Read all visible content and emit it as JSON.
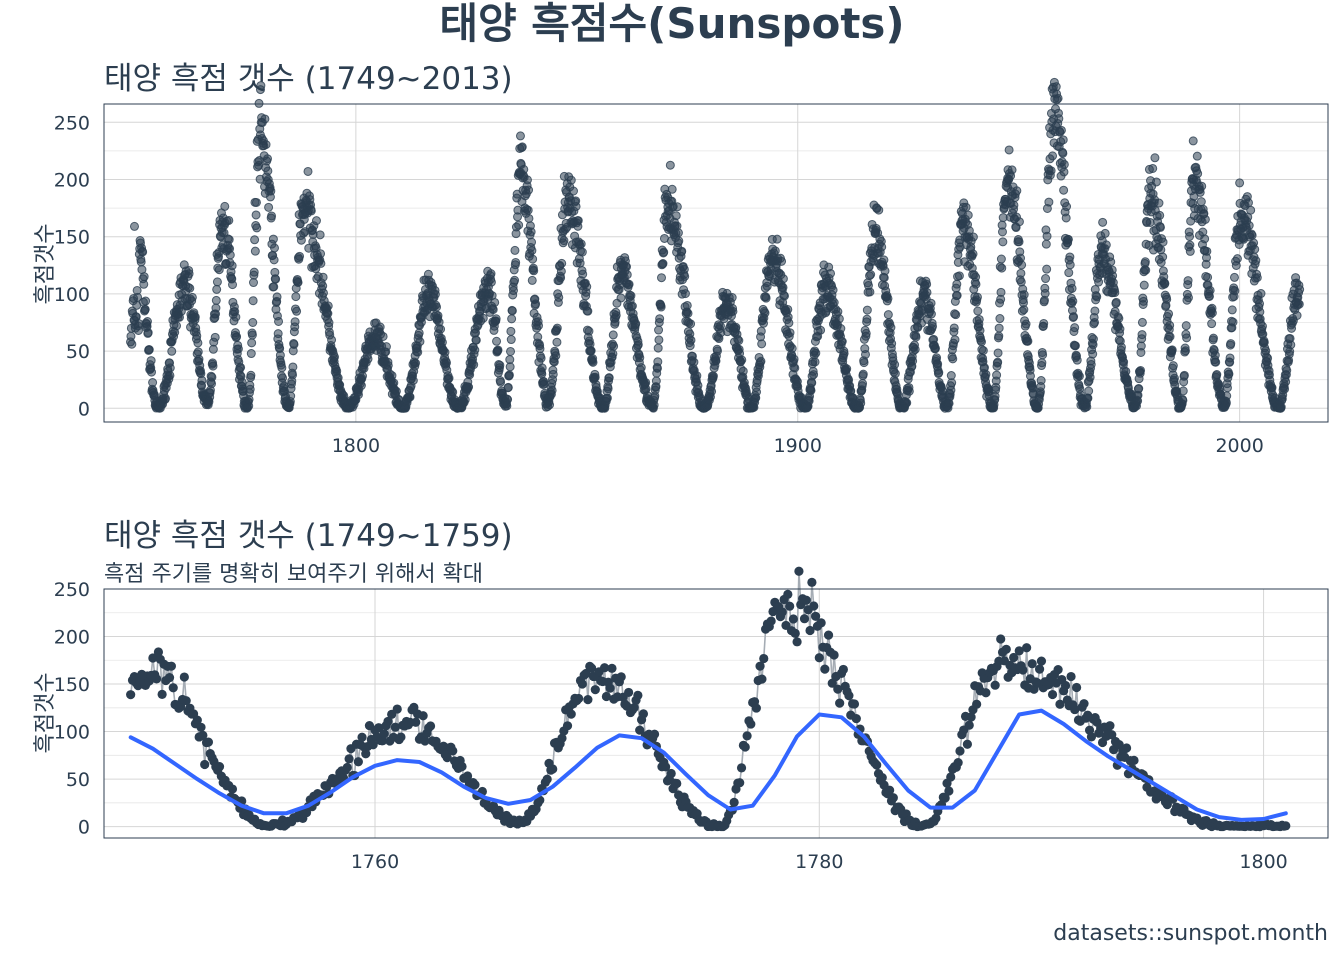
{
  "title": "태양 흑점수(Sunspots)",
  "caption": "datasets::sunspot.month",
  "colors": {
    "points": "#2c3e50",
    "smooth": "#3366ff",
    "segments": "#a5acb4"
  },
  "chart_data": [
    {
      "type": "scatter",
      "title": "태양 흑점 갯수 (1749~2013)",
      "ylabel": "흑점갯수",
      "xlim": [
        1743,
        2020
      ],
      "ylim": [
        -12,
        266
      ],
      "x_ticks": [
        1800,
        1900,
        2000
      ],
      "y_ticks": [
        0,
        50,
        100,
        150,
        200,
        250
      ],
      "grid": true,
      "series": [
        {
          "x": [
            1749.0,
            1749.1,
            1749.2,
            1749.3,
            1749.4,
            1749.5,
            1749.6,
            1749.7,
            1749.8,
            1749.9,
            1750.0,
            1750.1,
            1750.2,
            1750.3,
            1750.4,
            1750.5,
            1750.6,
            1750.7,
            1750.8,
            1750.9
          ],
          "y": [
            58,
            63,
            70,
            56,
            85,
            83,
            94,
            96,
            77,
            77,
            73,
            70,
            80,
            80,
            90,
            103,
            97,
            72,
            68,
            74
          ],
          "peaks": [
            {
              "year": 1749.9,
              "value": 159
            },
            {
              "year": 1761.5,
              "value": 107
            },
            {
              "year": 1769.8,
              "value": 158
            },
            {
              "year": 1778.4,
              "value": 239
            },
            {
              "year": 1788.1,
              "value": 174
            },
            {
              "year": 1804.5,
              "value": 62
            },
            {
              "year": 1816.5,
              "value": 96
            },
            {
              "year": 1830.0,
              "value": 106
            },
            {
              "year": 1837.3,
              "value": 206
            },
            {
              "year": 1848.1,
              "value": 180
            },
            {
              "year": 1860.1,
              "value": 116
            },
            {
              "year": 1870.6,
              "value": 176
            },
            {
              "year": 1883.9,
              "value": 92
            },
            {
              "year": 1894.1,
              "value": 129
            },
            {
              "year": 1906.2,
              "value": 107
            },
            {
              "year": 1917.6,
              "value": 154
            },
            {
              "year": 1928.4,
              "value": 98
            },
            {
              "year": 1937.4,
              "value": 165
            },
            {
              "year": 1947.5,
              "value": 201
            },
            {
              "year": 1957.9,
              "value": 253
            },
            {
              "year": 1968.9,
              "value": 135
            },
            {
              "year": 1979.9,
              "value": 188
            },
            {
              "year": 1989.6,
              "value": 200
            },
            {
              "year": 2000.3,
              "value": 170
            },
            {
              "year": 2013.0,
              "value": 97
            }
          ],
          "minima": [
            {
              "year": 1755.2,
              "value": 0
            },
            {
              "year": 1766.5,
              "value": 4
            },
            {
              "year": 1775.5,
              "value": 0
            },
            {
              "year": 1784.7,
              "value": 0
            },
            {
              "year": 1798.3,
              "value": 0
            },
            {
              "year": 1810.6,
              "value": 0
            },
            {
              "year": 1823.3,
              "value": 0
            },
            {
              "year": 1833.9,
              "value": 3
            },
            {
              "year": 1843.5,
              "value": 5
            },
            {
              "year": 1856.0,
              "value": 0
            },
            {
              "year": 1867.2,
              "value": 1
            },
            {
              "year": 1878.9,
              "value": 0
            },
            {
              "year": 1889.6,
              "value": 0
            },
            {
              "year": 1901.7,
              "value": 0
            },
            {
              "year": 1913.6,
              "value": 0
            },
            {
              "year": 1923.6,
              "value": 0
            },
            {
              "year": 1933.8,
              "value": 1
            },
            {
              "year": 1944.2,
              "value": 1
            },
            {
              "year": 1954.3,
              "value": 0
            },
            {
              "year": 1964.9,
              "value": 2
            },
            {
              "year": 1976.5,
              "value": 2
            },
            {
              "year": 1986.8,
              "value": 1
            },
            {
              "year": 1996.5,
              "value": 2
            },
            {
              "year": 2008.9,
              "value": 0
            }
          ]
        }
      ]
    },
    {
      "type": "scatter",
      "title": "태양 흑점 갯수 (1749~1759)",
      "subtitle": "흑점 주기를 명확히 보여주기 위해서 확대",
      "ylabel": "흑점갯수",
      "xlim": [
        1747.8,
        1802.9
      ],
      "ylim": [
        -12,
        250
      ],
      "x_ticks": [
        1760,
        1780,
        1800
      ],
      "y_ticks": [
        0,
        50,
        100,
        150,
        200,
        250
      ],
      "grid": true,
      "peaks": [
        {
          "year": 1749.9,
          "value": 159
        },
        {
          "year": 1761.5,
          "value": 107
        },
        {
          "year": 1769.8,
          "value": 158
        },
        {
          "year": 1778.4,
          "value": 239
        },
        {
          "year": 1788.1,
          "value": 174
        }
      ],
      "minima": [
        {
          "year": 1755.2,
          "value": 0
        },
        {
          "year": 1766.5,
          "value": 4
        },
        {
          "year": 1775.5,
          "value": 0
        },
        {
          "year": 1784.7,
          "value": 0
        },
        {
          "year": 1798.3,
          "value": 0
        }
      ],
      "smooth": {
        "x": [
          1749.0,
          1750,
          1751,
          1752,
          1753,
          1754,
          1755,
          1756,
          1757,
          1758,
          1759,
          1760,
          1761,
          1762,
          1763,
          1764,
          1765,
          1766,
          1767,
          1768,
          1769,
          1770,
          1771,
          1772,
          1773,
          1774,
          1775,
          1776,
          1777,
          1778,
          1779,
          1780,
          1781,
          1782,
          1783,
          1784,
          1785,
          1786,
          1787,
          1788,
          1789,
          1790,
          1791,
          1792,
          1793,
          1794,
          1795,
          1796,
          1797,
          1798,
          1799,
          1800,
          1801
        ],
        "y": [
          94,
          82,
          66,
          50,
          35,
          22,
          14,
          14,
          22,
          36,
          52,
          64,
          70,
          68,
          57,
          42,
          30,
          24,
          28,
          42,
          62,
          83,
          96,
          93,
          78,
          55,
          33,
          18,
          22,
          54,
          95,
          118,
          115,
          95,
          66,
          38,
          20,
          20,
          38,
          78,
          118,
          122,
          108,
          90,
          74,
          60,
          46,
          32,
          18,
          10,
          7,
          8,
          14
        ]
      }
    }
  ]
}
